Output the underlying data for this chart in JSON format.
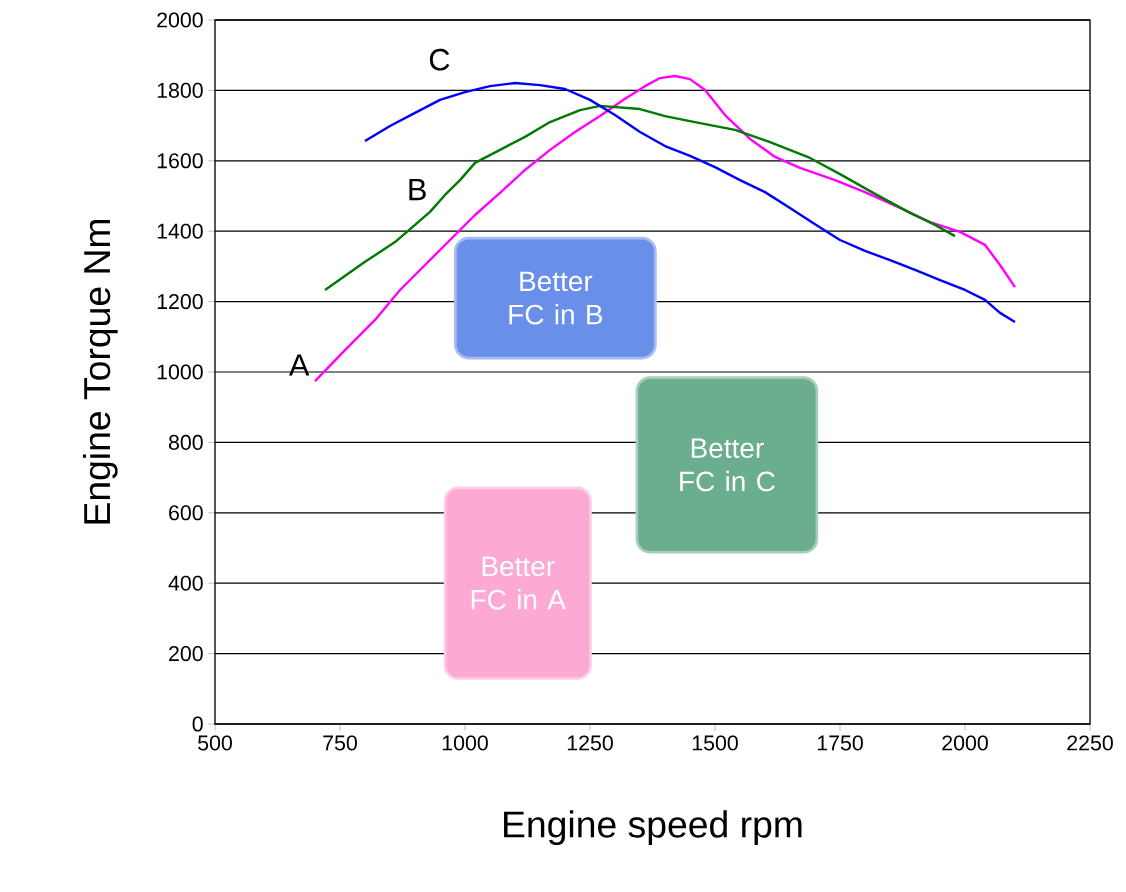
{
  "chart_data": {
    "type": "line",
    "xlabel": "Engine speed rpm",
    "ylabel": "Engine Torque Nm",
    "xlim": [
      500,
      2250
    ],
    "ylim": [
      0,
      2000
    ],
    "xticks": [
      500,
      750,
      1000,
      1250,
      1500,
      1750,
      2000,
      2250
    ],
    "yticks": [
      0,
      200,
      400,
      600,
      800,
      1000,
      1200,
      1400,
      1600,
      1800,
      2000
    ],
    "grid": "y",
    "series": [
      {
        "name": "A",
        "color": "#ff00ff",
        "x": [
          700,
          760,
          820,
          870,
          920,
          970,
          1020,
          1070,
          1120,
          1170,
          1220,
          1270,
          1320,
          1360,
          1390,
          1420,
          1450,
          1480,
          1520,
          1570,
          1620,
          1670,
          1740,
          1800,
          1870,
          1930,
          1990,
          2040,
          2070,
          2100
        ],
        "values": [
          974,
          1062,
          1148,
          1233,
          1304,
          1375,
          1446,
          1509,
          1574,
          1631,
          1682,
          1727,
          1776,
          1812,
          1835,
          1841,
          1832,
          1801,
          1730,
          1662,
          1611,
          1580,
          1545,
          1511,
          1466,
          1426,
          1398,
          1361,
          1304,
          1241
        ]
      },
      {
        "name": "B",
        "color": "#007a00",
        "x": [
          720,
          800,
          860,
          900,
          930,
          960,
          990,
          1020,
          1070,
          1120,
          1170,
          1230,
          1270,
          1350,
          1400,
          1470,
          1540,
          1610,
          1690,
          1750,
          1820,
          1890,
          1940,
          1980
        ],
        "values": [
          1233,
          1313,
          1369,
          1418,
          1455,
          1503,
          1545,
          1594,
          1631,
          1668,
          1710,
          1744,
          1756,
          1747,
          1727,
          1707,
          1688,
          1653,
          1608,
          1562,
          1506,
          1452,
          1418,
          1386
        ]
      },
      {
        "name": "C",
        "color": "#0000ff",
        "x": [
          800,
          850,
          900,
          950,
          1000,
          1050,
          1100,
          1150,
          1200,
          1250,
          1300,
          1350,
          1400,
          1450,
          1500,
          1550,
          1600,
          1650,
          1700,
          1750,
          1800,
          1850,
          1900,
          1950,
          2000,
          2040,
          2070,
          2100
        ],
        "values": [
          1656,
          1699,
          1736,
          1773,
          1795,
          1812,
          1821,
          1815,
          1804,
          1773,
          1730,
          1682,
          1642,
          1614,
          1582,
          1545,
          1511,
          1466,
          1420,
          1375,
          1344,
          1318,
          1290,
          1261,
          1233,
          1205,
          1168,
          1142
        ]
      }
    ],
    "annotations": [
      "Better FC in B",
      "Better FC in C",
      "Better FC in A"
    ]
  }
}
